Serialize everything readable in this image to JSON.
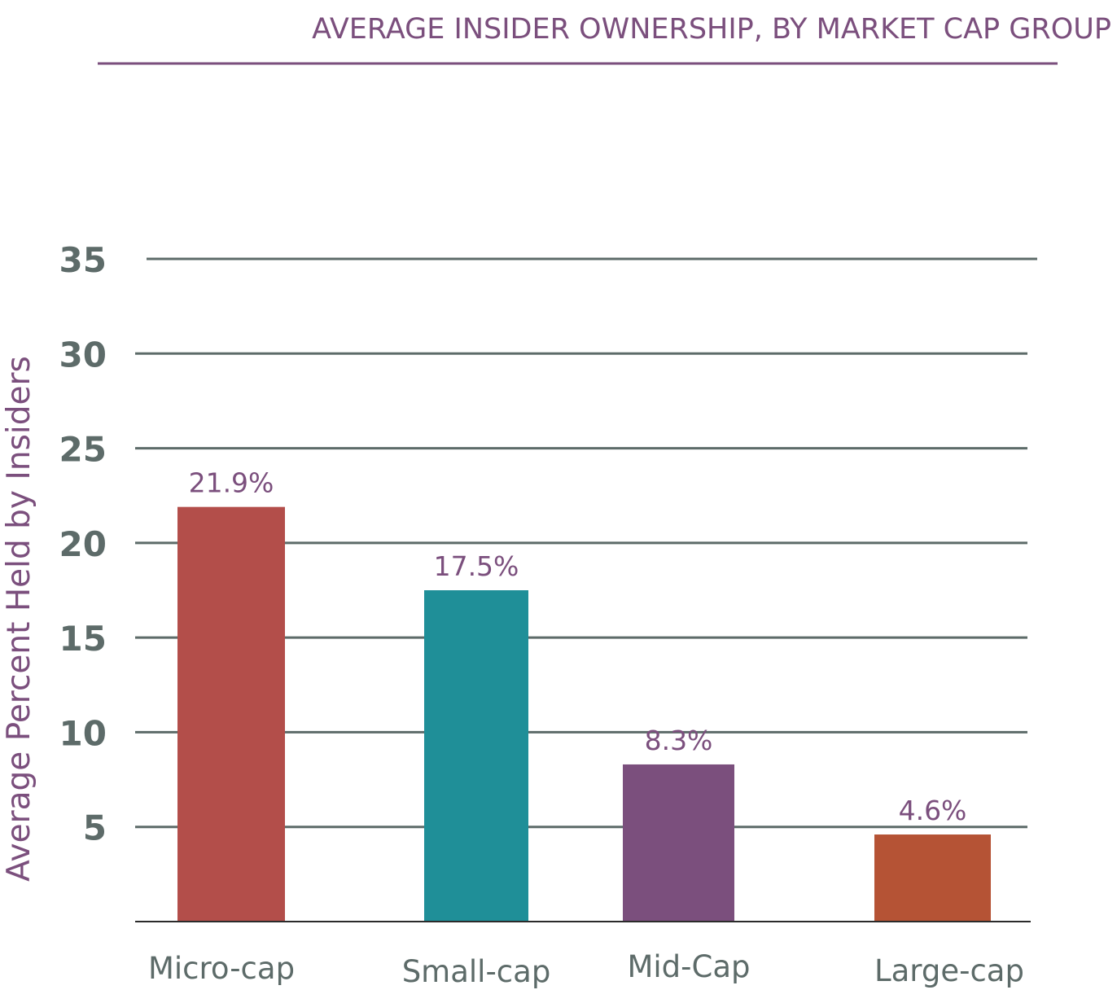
{
  "chart_data": {
    "type": "bar",
    "title": "AVERAGE INSIDER OWNERSHIP, BY MARKET CAP GROUP",
    "ylabel": "Average Percent Held by Insiders",
    "xlabel": "",
    "ylim": [
      0,
      35
    ],
    "yticks": [
      5,
      10,
      15,
      20,
      25,
      30,
      35
    ],
    "grid": true,
    "categories": [
      "Micro-cap",
      "Small-cap",
      "Mid-Cap",
      "Large-cap"
    ],
    "values": [
      21.9,
      17.5,
      8.3,
      4.6
    ],
    "value_labels": [
      "21.9%",
      "17.5%",
      "8.3%",
      "4.6%"
    ],
    "colors": [
      "#b34e4a",
      "#1f8f98",
      "#7b4f7d",
      "#b55335"
    ]
  }
}
